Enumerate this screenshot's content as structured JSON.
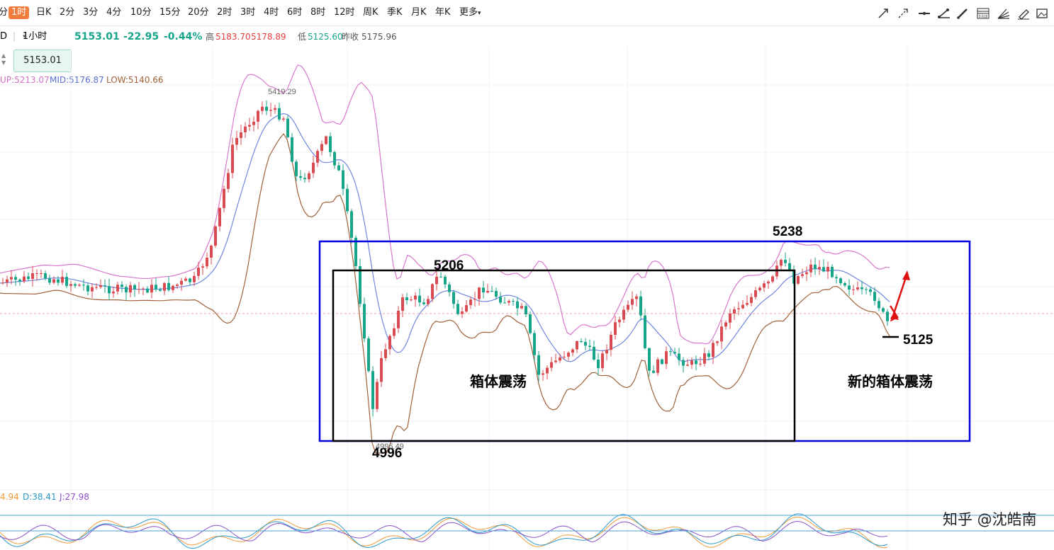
{
  "toolbar": {
    "partial_left": "分",
    "timeframes": [
      "1时",
      "日K",
      "2分",
      "3分",
      "4分",
      "10分",
      "15分",
      "20分",
      "2时",
      "3时",
      "4时",
      "6时",
      "8时",
      "12时",
      "周K",
      "季K",
      "月K",
      "年K",
      "更多"
    ],
    "active": "1时",
    "more_symbol": "▾",
    "tools": [
      "trend-line-icon",
      "ray-icon",
      "horizontal-line-icon",
      "segment-icon",
      "pen-icon",
      "fibonacci-icon",
      "fan-icon",
      "brush-icon",
      "image-icon"
    ],
    "fib_label": "0.618"
  },
  "quote": {
    "symbol_partial": "D",
    "interval": "1小时",
    "interval_arrow": "▾",
    "last": "5153.01",
    "change": "-22.95",
    "change_pct": "-0.44%",
    "high_label": "高",
    "high": "5183.70",
    "open": "5178.89",
    "low_label": "低",
    "low": "5125.60",
    "prev_close_label": "昨收",
    "prev_close": "5175.96"
  },
  "price_tag": "5153.01",
  "indicator_boll": {
    "up": "UP:5213.07",
    "mid": "MID:5176.87",
    "low": "LOW:5140.66"
  },
  "indicator_kdj": {
    "k_partial": "4.94",
    "d": "D:38.41",
    "j": "J:27.98"
  },
  "colors": {
    "up_candle": "#d94b52",
    "down_candle": "#17a58a",
    "boll_up": "#d878cc",
    "boll_mid": "#6f86e0",
    "boll_low": "#a0603a",
    "box_outer": "#0000dd",
    "box_inner": "#000000",
    "arrow": "#e01010"
  },
  "chart_data": {
    "type": "candlestick",
    "marked_high": "5419.29",
    "marked_low": "4996.49",
    "annotations": {
      "high_5238": "5238",
      "high_5206": "5206",
      "low_4996": "4996",
      "support_5125": "5125",
      "box_text": "箱体震荡",
      "new_box_text": "新的箱体震荡"
    },
    "ylim": [
      4960,
      5470
    ],
    "grid": true
  },
  "watermark": "知乎 @沈皓南"
}
